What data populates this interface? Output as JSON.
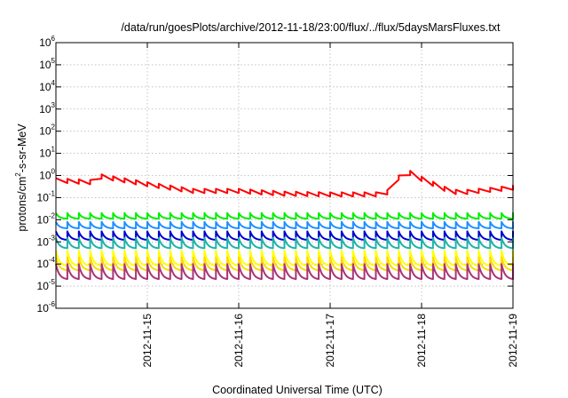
{
  "chart_data": {
    "type": "line",
    "title": "/data/run/goesPlots/archive/2012-11-18/23:00/flux/../flux/5daysMarsFluxes.txt",
    "xlabel": "Coordinated Universal Time (UTC)",
    "ylabel": {
      "prefix": "protons/cm",
      "sup": "2",
      "suffix": "-s-sr-MeV"
    },
    "yscale": "log",
    "ylim": [
      1e-06,
      1000000.0
    ],
    "xlim": [
      "2012-11-14 00:00",
      "2012-11-19 00:00"
    ],
    "grid": true,
    "x_ticks": [
      "2012-11-15",
      "2012-11-16",
      "2012-11-17",
      "2012-11-18",
      "2012-11-19"
    ],
    "y_ticks": [
      {
        "base": "10",
        "exp": "-6"
      },
      {
        "base": "10",
        "exp": "-5"
      },
      {
        "base": "10",
        "exp": "-4"
      },
      {
        "base": "10",
        "exp": "-3"
      },
      {
        "base": "10",
        "exp": "-2"
      },
      {
        "base": "10",
        "exp": "-1"
      },
      {
        "base": "10",
        "exp": "0"
      },
      {
        "base": "10",
        "exp": "1"
      },
      {
        "base": "10",
        "exp": "2"
      },
      {
        "base": "10",
        "exp": "3"
      },
      {
        "base": "10",
        "exp": "4"
      },
      {
        "base": "10",
        "exp": "5"
      },
      {
        "base": "10",
        "exp": "6"
      }
    ],
    "series": [
      {
        "color": "#ff0000",
        "sawtooth_period_hours": 3,
        "points": [
          {
            "x": "2012-11-14 00:00",
            "y": 0.6
          },
          {
            "x": "2012-11-14 09:00",
            "y": 0.5
          },
          {
            "x": "2012-11-14 12:00",
            "y": 0.9
          },
          {
            "x": "2012-11-15 00:00",
            "y": 0.4
          },
          {
            "x": "2012-11-15 12:00",
            "y": 0.2
          },
          {
            "x": "2012-11-16 00:00",
            "y": 0.2
          },
          {
            "x": "2012-11-16 12:00",
            "y": 0.15
          },
          {
            "x": "2012-11-17 00:00",
            "y": 0.14
          },
          {
            "x": "2012-11-17 12:00",
            "y": 0.14
          },
          {
            "x": "2012-11-17 17:00",
            "y": 0.2
          },
          {
            "x": "2012-11-17 18:00",
            "y": 0.8
          },
          {
            "x": "2012-11-17 21:00",
            "y": 1.3
          },
          {
            "x": "2012-11-18 00:00",
            "y": 0.7
          },
          {
            "x": "2012-11-18 06:00",
            "y": 0.25
          },
          {
            "x": "2012-11-18 08:00",
            "y": 0.18
          },
          {
            "x": "2012-11-18 12:00",
            "y": 0.18
          },
          {
            "x": "2012-11-19 00:00",
            "y": 0.28
          }
        ]
      },
      {
        "color": "#00ee00",
        "sawtooth_period_hours": 3,
        "peak": 0.02,
        "trough": 0.011
      },
      {
        "color": "#1e90ff",
        "sawtooth_period_hours": 3,
        "peak": 0.008,
        "trough": 0.004
      },
      {
        "color": "#0000cd",
        "sawtooth_period_hours": 3,
        "peak": 0.003,
        "trough": 0.0012
      },
      {
        "color": "#20b2aa",
        "sawtooth_period_hours": 3,
        "peak": 0.0015,
        "trough": 0.0005
      },
      {
        "color": "#ffff00",
        "sawtooth_period_hours": 3,
        "peak": 0.0004,
        "trough": 8e-05
      },
      {
        "color": "#ffd700",
        "sawtooth_period_hours": 3,
        "peak": 0.0002,
        "trough": 5e-05
      },
      {
        "color": "#aa3377",
        "sawtooth_period_hours": 3,
        "peak": 0.0001,
        "trough": 2e-05
      }
    ]
  }
}
